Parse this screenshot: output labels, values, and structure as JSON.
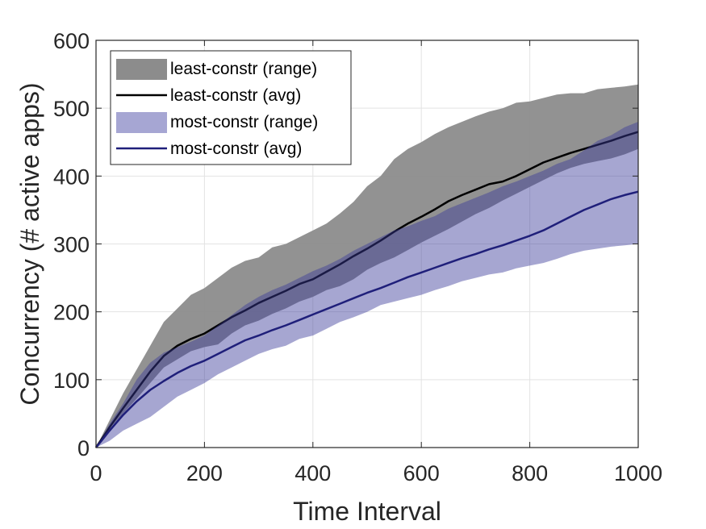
{
  "chart_data": {
    "type": "area",
    "xlabel": "Time Interval",
    "ylabel": "Concurrency (# active apps)",
    "xlim": [
      0,
      1000
    ],
    "ylim": [
      0,
      600
    ],
    "xticks": [
      0,
      200,
      400,
      600,
      800,
      1000
    ],
    "yticks": [
      0,
      100,
      200,
      300,
      400,
      500,
      600
    ],
    "xtick_labels": [
      "0",
      "200",
      "400",
      "600",
      "800",
      "1000"
    ],
    "ytick_labels": [
      "0",
      "100",
      "200",
      "300",
      "400",
      "500",
      "600"
    ],
    "grid": true,
    "legend_position": "top-left",
    "x": [
      0,
      25,
      50,
      75,
      100,
      125,
      150,
      175,
      200,
      225,
      250,
      275,
      300,
      325,
      350,
      375,
      400,
      425,
      450,
      475,
      500,
      525,
      550,
      575,
      600,
      625,
      650,
      675,
      700,
      725,
      750,
      775,
      800,
      825,
      850,
      875,
      900,
      925,
      950,
      975,
      1000
    ],
    "series": [
      {
        "name": "least-constr (range)",
        "kind": "range",
        "color": "#8c8c8c",
        "low": [
          0,
          28,
          50,
          72,
          95,
          118,
          130,
          142,
          148,
          152,
          168,
          180,
          187,
          197,
          205,
          215,
          222,
          232,
          238,
          248,
          262,
          272,
          280,
          291,
          302,
          312,
          322,
          333,
          344,
          353,
          364,
          374,
          384,
          394,
          404,
          412,
          418,
          422,
          426,
          432,
          440
        ],
        "high": [
          0,
          40,
          80,
          115,
          150,
          185,
          205,
          225,
          235,
          250,
          265,
          275,
          280,
          295,
          300,
          310,
          320,
          330,
          345,
          362,
          385,
          400,
          425,
          440,
          450,
          462,
          472,
          480,
          488,
          495,
          500,
          508,
          510,
          515,
          520,
          522,
          522,
          528,
          530,
          532,
          535
        ]
      },
      {
        "name": "least-constr (avg)",
        "kind": "line",
        "color": "#000000",
        "values": [
          0,
          30,
          58,
          85,
          112,
          135,
          150,
          160,
          168,
          180,
          192,
          202,
          213,
          222,
          231,
          241,
          248,
          259,
          270,
          282,
          293,
          305,
          318,
          330,
          340,
          351,
          363,
          372,
          380,
          388,
          392,
          400,
          410,
          420,
          427,
          434,
          440,
          446,
          452,
          459,
          465
        ]
      },
      {
        "name": "most-constr (range)",
        "kind": "range",
        "color": "#3a3a9a",
        "low": [
          0,
          10,
          25,
          35,
          45,
          60,
          75,
          85,
          95,
          108,
          118,
          128,
          138,
          145,
          150,
          160,
          165,
          175,
          185,
          192,
          200,
          210,
          215,
          220,
          225,
          232,
          238,
          245,
          250,
          255,
          258,
          264,
          268,
          272,
          278,
          285,
          290,
          293,
          296,
          298,
          300
        ],
        "high": [
          0,
          35,
          65,
          100,
          125,
          140,
          148,
          156,
          165,
          180,
          195,
          210,
          222,
          232,
          240,
          250,
          260,
          268,
          278,
          290,
          300,
          310,
          320,
          326,
          334,
          341,
          352,
          360,
          368,
          376,
          385,
          392,
          400,
          408,
          418,
          425,
          438,
          452,
          460,
          472,
          480
        ]
      },
      {
        "name": "most-constr (avg)",
        "kind": "line",
        "color": "#1f1f7a",
        "values": [
          0,
          25,
          48,
          68,
          85,
          98,
          110,
          120,
          128,
          138,
          148,
          158,
          165,
          173,
          180,
          188,
          196,
          204,
          212,
          220,
          228,
          235,
          243,
          251,
          258,
          265,
          272,
          279,
          285,
          292,
          298,
          305,
          312,
          320,
          330,
          340,
          350,
          358,
          366,
          372,
          377
        ]
      }
    ],
    "legend": [
      {
        "label": "least-constr (range)",
        "swatch": "patch",
        "color": "#8c8c8c"
      },
      {
        "label": "least-constr (avg)",
        "swatch": "line",
        "color": "#000000"
      },
      {
        "label": "most-constr (range)",
        "swatch": "patch",
        "color": "#a6a6d3"
      },
      {
        "label": "most-constr (avg)",
        "swatch": "line",
        "color": "#1f1f7a"
      }
    ]
  }
}
